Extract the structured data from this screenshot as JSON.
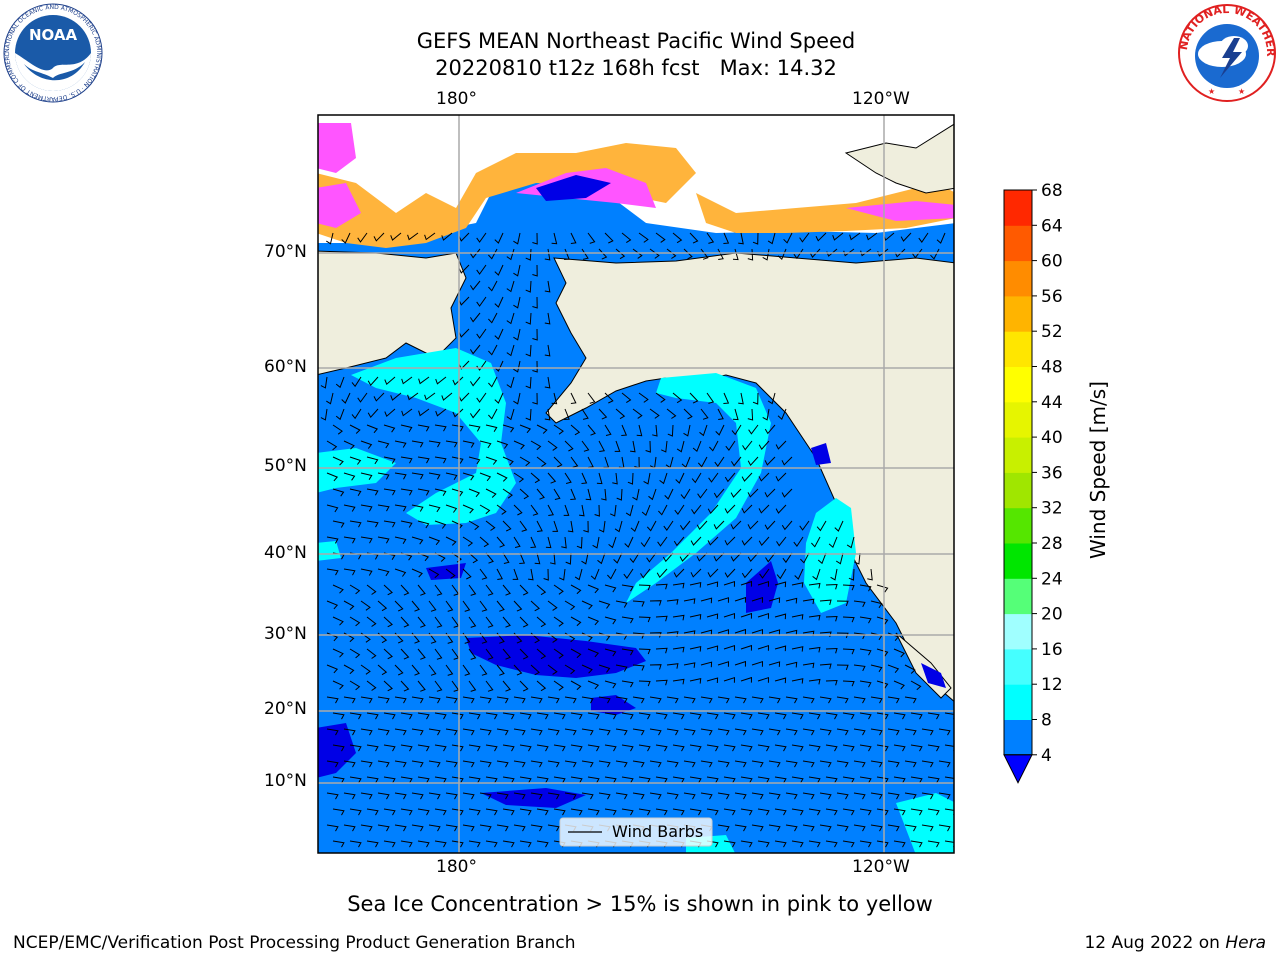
{
  "title": {
    "line1": "GEFS MEAN Northeast Pacific Wind Speed",
    "line2": "20220810 t12z 168h fcst   Max: 14.32"
  },
  "caption": "Sea Ice Concentration > 15% is shown in pink to yellow",
  "footer": {
    "left": "NCEP/EMC/Verification Post Processing Product Generation Branch",
    "date": "12 Aug 2022 on",
    "host": "Hera"
  },
  "logos": {
    "noaa_text": "NOAA",
    "noaa_ring": "NATIONAL OCEANIC AND ATMOSPHERIC ADMINISTRATION · U.S. DEPARTMENT OF COMMERCE ·",
    "nws_ring": "NATIONAL WEATHER SERVICE"
  },
  "map": {
    "lon_labels_top": [
      "180°",
      "120°W"
    ],
    "lon_labels_bottom": [
      "180°",
      "120°W"
    ],
    "lat_labels": [
      "70°N",
      "60°N",
      "50°N",
      "40°N",
      "30°N",
      "20°N",
      "10°N"
    ],
    "legend_label": "Wind Barbs",
    "colors": {
      "land": "#efeedd",
      "ocean_base": "#0080ff",
      "ocean_fast": "#00ffff",
      "ocean_calm": "#0000e6",
      "ice_pink": "#ff55ff",
      "ice_orange": "#ffb43c"
    }
  },
  "colorbar": {
    "title": "Wind Speed [m/s]",
    "ticks": [
      "4",
      "8",
      "12",
      "16",
      "20",
      "24",
      "28",
      "32",
      "36",
      "40",
      "44",
      "48",
      "52",
      "56",
      "60",
      "64",
      "68"
    ],
    "colors": [
      "#0080ff",
      "#00ffff",
      "#45ffff",
      "#a0ffff",
      "#55ff78",
      "#00e600",
      "#55e600",
      "#a0e600",
      "#c8f000",
      "#e6f500",
      "#ffff00",
      "#ffe600",
      "#ffb400",
      "#ff8c00",
      "#ff5a00",
      "#ff2800"
    ],
    "under_color": "#0000ff"
  }
}
